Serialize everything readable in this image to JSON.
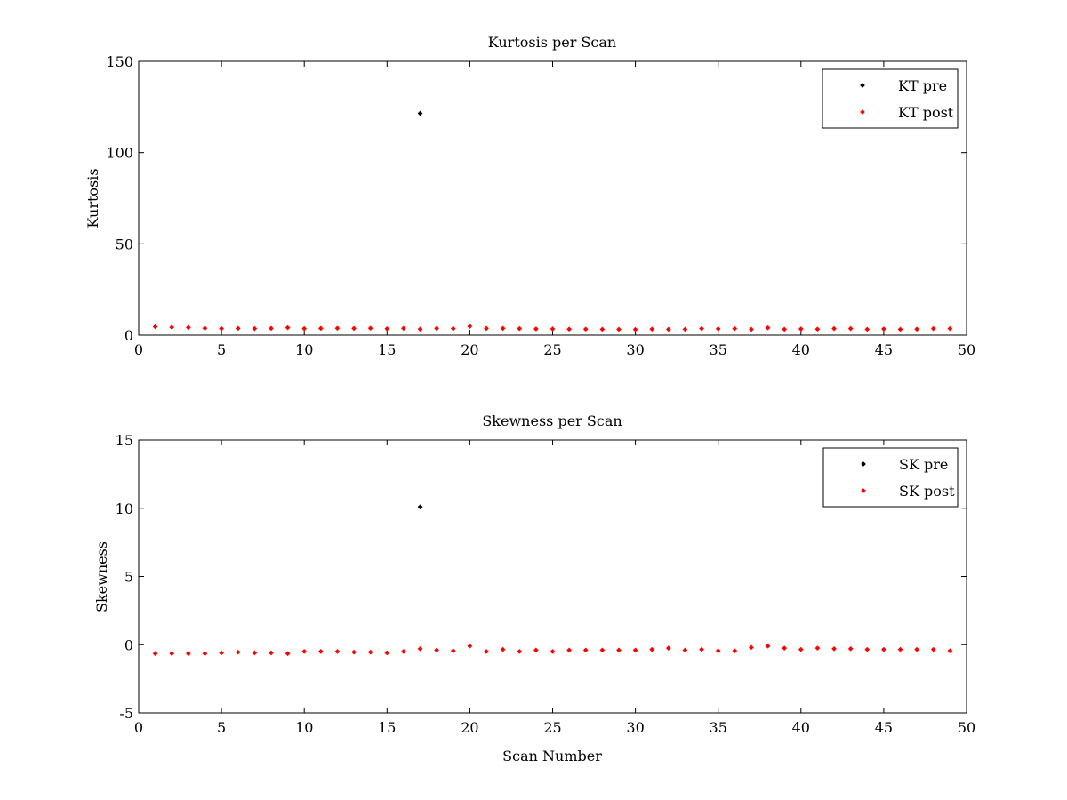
{
  "chart_data": [
    {
      "type": "scatter",
      "title": "Kurtosis per Scan",
      "xlabel": "",
      "ylabel": "Kurtosis",
      "xlim": [
        0,
        50
      ],
      "ylim": [
        0,
        150
      ],
      "xticks": [
        0,
        5,
        10,
        15,
        20,
        25,
        30,
        35,
        40,
        45,
        50
      ],
      "yticks": [
        0,
        50,
        100,
        150
      ],
      "grid": false,
      "legend_position": "top-right",
      "series": [
        {
          "name": "KT pre",
          "color": "#000000",
          "x": [
            17
          ],
          "y": [
            121.5
          ]
        },
        {
          "name": "KT post",
          "color": "#ff0000",
          "x": [
            1,
            2,
            3,
            4,
            5,
            6,
            7,
            8,
            9,
            10,
            11,
            12,
            13,
            14,
            15,
            16,
            17,
            18,
            19,
            20,
            21,
            22,
            23,
            24,
            25,
            26,
            27,
            28,
            29,
            30,
            31,
            32,
            33,
            34,
            35,
            36,
            37,
            38,
            39,
            40,
            41,
            42,
            43,
            44,
            45,
            46,
            47,
            48,
            49
          ],
          "y": [
            4.6,
            4.3,
            4.2,
            3.8,
            3.6,
            3.7,
            3.6,
            3.7,
            4.1,
            3.6,
            3.7,
            3.8,
            3.7,
            3.8,
            3.5,
            3.7,
            3.3,
            3.7,
            3.6,
            4.8,
            3.7,
            3.7,
            3.6,
            3.4,
            3.4,
            3.3,
            3.3,
            3.2,
            3.2,
            3.1,
            3.3,
            3.2,
            3.2,
            3.6,
            3.5,
            3.6,
            3.2,
            4.0,
            3.2,
            3.4,
            3.3,
            3.6,
            3.6,
            3.2,
            3.4,
            3.2,
            3.3,
            3.6,
            3.6
          ]
        }
      ]
    },
    {
      "type": "scatter",
      "title": "Skewness per Scan",
      "xlabel": "Scan Number",
      "ylabel": "Skewness",
      "xlim": [
        0,
        50
      ],
      "ylim": [
        -5,
        15
      ],
      "xticks": [
        0,
        5,
        10,
        15,
        20,
        25,
        30,
        35,
        40,
        45,
        50
      ],
      "yticks": [
        -5,
        0,
        5,
        10,
        15
      ],
      "grid": false,
      "legend_position": "top-right",
      "series": [
        {
          "name": "SK pre",
          "color": "#000000",
          "x": [
            17
          ],
          "y": [
            10.1
          ]
        },
        {
          "name": "SK post",
          "color": "#ff0000",
          "x": [
            1,
            2,
            3,
            4,
            5,
            6,
            7,
            8,
            9,
            10,
            11,
            12,
            13,
            14,
            15,
            16,
            17,
            18,
            19,
            20,
            21,
            22,
            23,
            24,
            25,
            26,
            27,
            28,
            29,
            30,
            31,
            32,
            33,
            34,
            35,
            36,
            37,
            38,
            39,
            40,
            41,
            42,
            43,
            44,
            45,
            46,
            47,
            48,
            49
          ],
          "y": [
            -0.65,
            -0.65,
            -0.65,
            -0.65,
            -0.6,
            -0.55,
            -0.6,
            -0.6,
            -0.65,
            -0.5,
            -0.5,
            -0.5,
            -0.55,
            -0.55,
            -0.6,
            -0.5,
            -0.3,
            -0.4,
            -0.45,
            -0.1,
            -0.5,
            -0.35,
            -0.5,
            -0.4,
            -0.5,
            -0.4,
            -0.4,
            -0.4,
            -0.4,
            -0.4,
            -0.35,
            -0.25,
            -0.4,
            -0.35,
            -0.45,
            -0.45,
            -0.2,
            -0.1,
            -0.25,
            -0.35,
            -0.25,
            -0.3,
            -0.3,
            -0.35,
            -0.35,
            -0.35,
            -0.35,
            -0.35,
            -0.45
          ]
        }
      ]
    }
  ]
}
